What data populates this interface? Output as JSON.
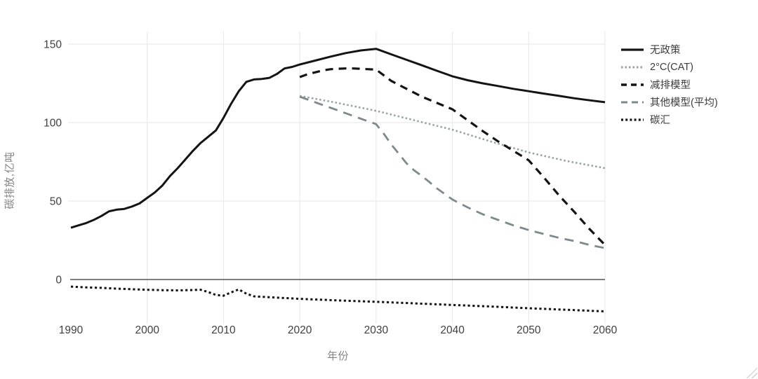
{
  "chart_data": {
    "type": "line",
    "title": "",
    "xlabel": "年份",
    "ylabel": "碳排放,亿吨",
    "x_ticks": [
      1990,
      2000,
      2010,
      2020,
      2030,
      2040,
      2050,
      2060
    ],
    "y_ticks": [
      0,
      50,
      100,
      150
    ],
    "xlim": [
      1990,
      2060
    ],
    "ylim": [
      -28,
      158
    ],
    "grid": true,
    "legend_position": "right",
    "colors": {
      "black_line": "#141414",
      "gray_dotted": "#98a2a4",
      "gray_dashed": "#7d898b",
      "gridline": "#ebebeb",
      "zeroline": "#545454",
      "tick_text": "#3f3f3f",
      "axis_title_text": "#848484"
    },
    "series": [
      {
        "name": "无政策",
        "color": "#141414",
        "dash": "solid",
        "width": 3,
        "points": [
          [
            1990,
            33
          ],
          [
            1991,
            34.5
          ],
          [
            1992,
            36
          ],
          [
            1993,
            38
          ],
          [
            1994,
            40.5
          ],
          [
            1995,
            43.5
          ],
          [
            1996,
            44.5
          ],
          [
            1997,
            45
          ],
          [
            1998,
            46.5
          ],
          [
            1999,
            48.5
          ],
          [
            2000,
            52
          ],
          [
            2001,
            55.5
          ],
          [
            2002,
            60
          ],
          [
            2003,
            66
          ],
          [
            2004,
            71
          ],
          [
            2005,
            76.5
          ],
          [
            2006,
            82
          ],
          [
            2007,
            87
          ],
          [
            2008,
            91
          ],
          [
            2009,
            95
          ],
          [
            2010,
            103
          ],
          [
            2011,
            112
          ],
          [
            2012,
            120
          ],
          [
            2013,
            126
          ],
          [
            2014,
            127.5
          ],
          [
            2015,
            127.8
          ],
          [
            2016,
            128.5
          ],
          [
            2017,
            131
          ],
          [
            2018,
            134.5
          ],
          [
            2019,
            135.5
          ],
          [
            2020,
            137
          ],
          [
            2022,
            139.5
          ],
          [
            2024,
            142
          ],
          [
            2026,
            144.3
          ],
          [
            2028,
            146
          ],
          [
            2030,
            147
          ],
          [
            2032,
            143.5
          ],
          [
            2034,
            140
          ],
          [
            2036,
            136.5
          ],
          [
            2038,
            133
          ],
          [
            2040,
            129.5
          ],
          [
            2042,
            127
          ],
          [
            2044,
            125
          ],
          [
            2046,
            123.3
          ],
          [
            2048,
            121.5
          ],
          [
            2050,
            120
          ],
          [
            2052,
            118.5
          ],
          [
            2054,
            117
          ],
          [
            2056,
            115.5
          ],
          [
            2058,
            114.2
          ],
          [
            2060,
            113
          ]
        ]
      },
      {
        "name": "2°C(CAT)",
        "color": "#98a2a4",
        "dash": "dotted",
        "width": 2.6,
        "points": [
          [
            2020,
            117
          ],
          [
            2025,
            112.5
          ],
          [
            2030,
            107.5
          ],
          [
            2035,
            101.5
          ],
          [
            2040,
            95.5
          ],
          [
            2045,
            88
          ],
          [
            2050,
            81
          ],
          [
            2055,
            75.5
          ],
          [
            2060,
            71
          ]
        ]
      },
      {
        "name": "减排模型",
        "color": "#141414",
        "dash": "dashed",
        "width": 3.2,
        "points": [
          [
            2020,
            129
          ],
          [
            2021,
            130.8
          ],
          [
            2022,
            132
          ],
          [
            2023,
            133.2
          ],
          [
            2024,
            134
          ],
          [
            2025,
            134.3
          ],
          [
            2026,
            134.5
          ],
          [
            2027,
            134.5
          ],
          [
            2028,
            134.3
          ],
          [
            2029,
            134
          ],
          [
            2030,
            133.8
          ],
          [
            2032,
            126.5
          ],
          [
            2034,
            121.5
          ],
          [
            2036,
            116.5
          ],
          [
            2038,
            112.5
          ],
          [
            2040,
            108.5
          ],
          [
            2042,
            101.5
          ],
          [
            2044,
            94.5
          ],
          [
            2046,
            88
          ],
          [
            2048,
            82
          ],
          [
            2050,
            76
          ],
          [
            2052,
            65
          ],
          [
            2054,
            53.5
          ],
          [
            2056,
            43
          ],
          [
            2058,
            32
          ],
          [
            2060,
            22
          ]
        ]
      },
      {
        "name": "其他模型(平均)",
        "color": "#7d898b",
        "dash": "dashed-long",
        "width": 2.8,
        "points": [
          [
            2020,
            116.5
          ],
          [
            2022,
            113
          ],
          [
            2024,
            109.5
          ],
          [
            2026,
            106
          ],
          [
            2028,
            102.5
          ],
          [
            2030,
            99
          ],
          [
            2031,
            93
          ],
          [
            2032,
            86
          ],
          [
            2033,
            80
          ],
          [
            2034,
            74
          ],
          [
            2035,
            69.5
          ],
          [
            2036,
            66
          ],
          [
            2037,
            62
          ],
          [
            2038,
            58
          ],
          [
            2039,
            54.5
          ],
          [
            2040,
            51
          ],
          [
            2042,
            46
          ],
          [
            2044,
            41.5
          ],
          [
            2046,
            38
          ],
          [
            2048,
            34.5
          ],
          [
            2050,
            31.5
          ],
          [
            2052,
            29
          ],
          [
            2054,
            26.5
          ],
          [
            2056,
            24.5
          ],
          [
            2058,
            22
          ],
          [
            2060,
            20
          ]
        ]
      },
      {
        "name": "碳汇",
        "color": "#141414",
        "dash": "dense-dotted",
        "width": 3,
        "points": [
          [
            1990,
            -4.5
          ],
          [
            1992,
            -5
          ],
          [
            1994,
            -5.3
          ],
          [
            1996,
            -5.8
          ],
          [
            1998,
            -6.2
          ],
          [
            2000,
            -6.5
          ],
          [
            2002,
            -6.8
          ],
          [
            2004,
            -6.9
          ],
          [
            2006,
            -6.7
          ],
          [
            2007,
            -6.5
          ],
          [
            2008,
            -8
          ],
          [
            2009,
            -9.8
          ],
          [
            2010,
            -10.3
          ],
          [
            2011,
            -8.2
          ],
          [
            2012,
            -6.3
          ],
          [
            2013,
            -9
          ],
          [
            2014,
            -10.7
          ],
          [
            2016,
            -11.3
          ],
          [
            2018,
            -11.8
          ],
          [
            2020,
            -12.3
          ],
          [
            2025,
            -13.3
          ],
          [
            2030,
            -14.2
          ],
          [
            2035,
            -15.2
          ],
          [
            2040,
            -16.2
          ],
          [
            2045,
            -17.2
          ],
          [
            2050,
            -18.3
          ],
          [
            2055,
            -19.3
          ],
          [
            2060,
            -20.3
          ]
        ]
      }
    ]
  }
}
